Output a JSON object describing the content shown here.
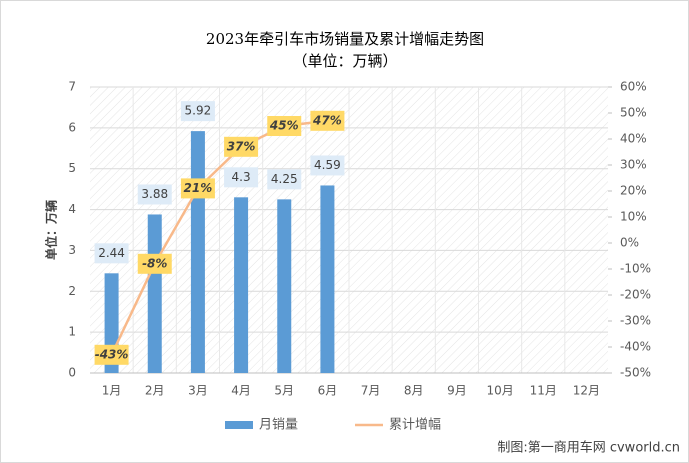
{
  "chart_data": {
    "type": "bar",
    "title": "2023年牵引车市场销量及累计增幅走势图",
    "subtitle": "（单位：万辆）",
    "y_label": "单位：万辆",
    "source": "制图:第一商用车网 cvworld.cn",
    "categories": [
      "1月",
      "2月",
      "3月",
      "4月",
      "5月",
      "6月",
      "7月",
      "8月",
      "9月",
      "10月",
      "11月",
      "12月"
    ],
    "series": [
      {
        "name": "月销量",
        "type": "bar",
        "color": "#5b9bd5",
        "values": [
          2.44,
          3.88,
          5.92,
          4.3,
          4.25,
          4.59,
          null,
          null,
          null,
          null,
          null,
          null
        ]
      },
      {
        "name": "累计增幅",
        "type": "line",
        "axis": "y2",
        "color": "#f8b98a",
        "values": [
          -43,
          -8,
          21,
          37,
          45,
          47,
          null,
          null,
          null,
          null,
          null,
          null
        ],
        "value_labels": [
          "-43%",
          "-8%",
          "21%",
          "37%",
          "45%",
          "47%",
          null,
          null,
          null,
          null,
          null,
          null
        ]
      }
    ],
    "ylim": [
      0,
      7
    ],
    "yticks": [
      0,
      1,
      2,
      3,
      4,
      5,
      6,
      7
    ],
    "y2lim": [
      -50,
      60
    ],
    "y2ticks": [
      {
        "value": -50,
        "label": "-50%"
      },
      {
        "value": -40,
        "label": "-40%"
      },
      {
        "value": -30,
        "label": "-30%"
      },
      {
        "value": -20,
        "label": "-20%"
      },
      {
        "value": -10,
        "label": "-10%"
      },
      {
        "value": 0,
        "label": "0%"
      },
      {
        "value": 10,
        "label": "10%"
      },
      {
        "value": 20,
        "label": "20%"
      },
      {
        "value": 30,
        "label": "30%"
      },
      {
        "value": 40,
        "label": "40%"
      },
      {
        "value": 50,
        "label": "50%"
      },
      {
        "value": 60,
        "label": "60%"
      }
    ],
    "grid": true,
    "legend": "bottom"
  }
}
